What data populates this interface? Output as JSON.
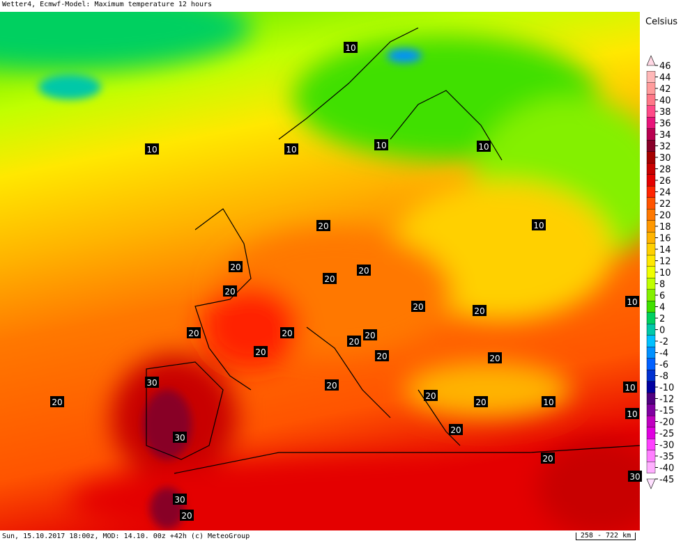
{
  "header": {
    "title": "Wetter4, Ecmwf-Model: Maximum temperature 12 hours"
  },
  "footer": {
    "text": "Sun, 15.10.2017 18:00z, MOD: 14.10. 00z +42h (c) MeteoGroup",
    "scale": "258 - 722 km"
  },
  "legend": {
    "title": "Celsius",
    "items": [
      {
        "label": 46,
        "color": "#ffd8e4"
      },
      {
        "label": 44,
        "color": "#ffb8b8"
      },
      {
        "label": 42,
        "color": "#ff9c9c"
      },
      {
        "label": 40,
        "color": "#ff7888"
      },
      {
        "label": 38,
        "color": "#ff4a88"
      },
      {
        "label": 36,
        "color": "#e8147a"
      },
      {
        "label": 34,
        "color": "#b80050"
      },
      {
        "label": 32,
        "color": "#880028"
      },
      {
        "label": 30,
        "color": "#a40000"
      },
      {
        "label": 28,
        "color": "#c80000"
      },
      {
        "label": 26,
        "color": "#e40000"
      },
      {
        "label": 24,
        "color": "#ff2400"
      },
      {
        "label": 22,
        "color": "#ff5400"
      },
      {
        "label": 20,
        "color": "#ff7800"
      },
      {
        "label": 18,
        "color": "#ff9800"
      },
      {
        "label": 16,
        "color": "#ffb400"
      },
      {
        "label": 14,
        "color": "#ffd000"
      },
      {
        "label": 12,
        "color": "#ffe800"
      },
      {
        "label": 10,
        "color": "#f0ff00"
      },
      {
        "label": 8,
        "color": "#c0ff00"
      },
      {
        "label": 6,
        "color": "#84f000"
      },
      {
        "label": 4,
        "color": "#40e000"
      },
      {
        "label": 2,
        "color": "#00d060"
      },
      {
        "label": 0,
        "color": "#00c8a8"
      },
      {
        "label": -2,
        "color": "#00c0ff"
      },
      {
        "label": -4,
        "color": "#0090ff"
      },
      {
        "label": -6,
        "color": "#0060ff"
      },
      {
        "label": -8,
        "color": "#0030d0"
      },
      {
        "label": -10,
        "color": "#0000a0"
      },
      {
        "label": -12,
        "color": "#500080"
      },
      {
        "label": -15,
        "color": "#8000a0"
      },
      {
        "label": -20,
        "color": "#c000c0"
      },
      {
        "label": -25,
        "color": "#e000e0"
      },
      {
        "label": -30,
        "color": "#ff40ff"
      },
      {
        "label": -35,
        "color": "#ff80ff"
      },
      {
        "label": -40,
        "color": "#ffb0ff"
      },
      {
        "label": -45,
        "color": "#ffe0ff"
      }
    ]
  },
  "map": {
    "contour_labels": [
      10,
      10,
      10,
      10,
      10,
      10,
      20,
      20,
      20,
      20,
      20,
      20,
      20,
      10,
      20,
      20,
      20,
      20,
      20,
      20,
      20,
      30,
      20,
      10,
      20,
      20,
      20,
      10,
      10,
      30,
      20,
      20,
      30,
      30,
      20
    ]
  }
}
